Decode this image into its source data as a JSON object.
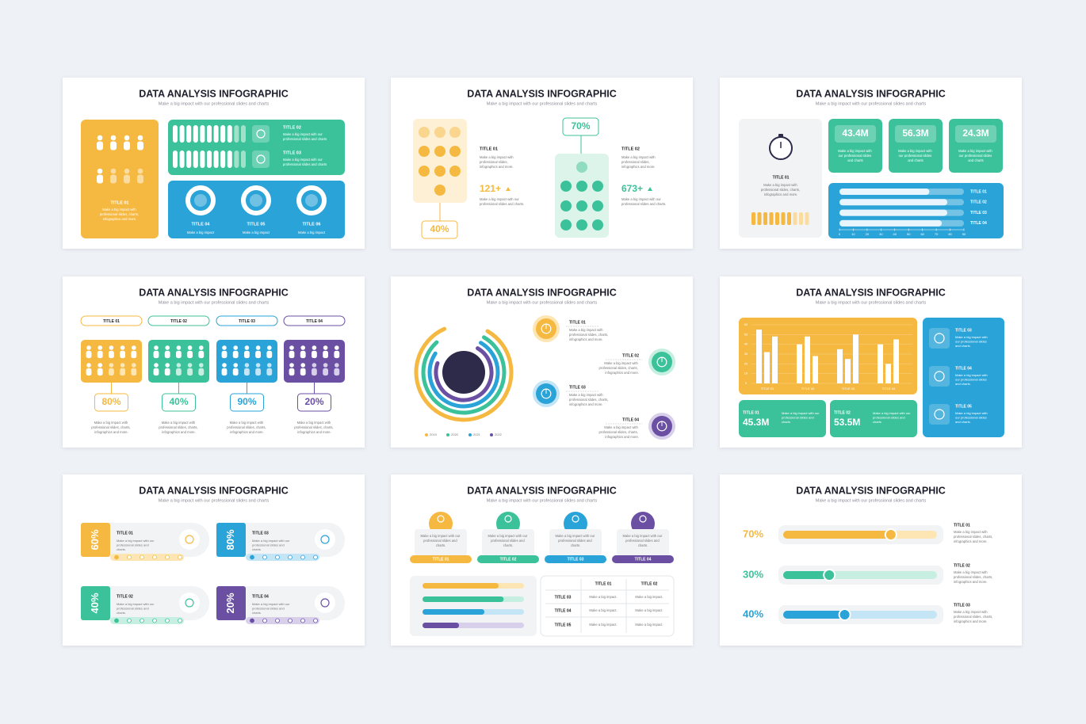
{
  "slides": [
    {
      "title": "DATA ANALYSIS INFOGRAPHIC",
      "subtitle": "Make a big impact with our professional slides and charts",
      "items": [
        {
          "title": "TITLE 01",
          "text": "Make a big impact with professional slides, charts, infographics and more."
        },
        {
          "title": "TITLE 02",
          "text": "Make a big impact with our professional slides and charts"
        },
        {
          "title": "TITLE 03",
          "text": "Make a big impact with our professional slides and charts"
        },
        {
          "title": "TITLE 04",
          "text": "Make a big impact"
        },
        {
          "title": "TITLE 05",
          "text": "Make a big impact"
        },
        {
          "title": "TITLE 06",
          "text": "Make a big impact"
        }
      ]
    },
    {
      "title": "DATA ANALYSIS INFOGRAPHIC",
      "subtitle": "Make a big impact with our professional slides and charts",
      "items": [
        {
          "percent": "40%",
          "title": "TITLE 01",
          "text": "Make a big impact with professional slides, infographics and more.",
          "stat": "121+",
          "stat_text": "Make a big impact with our professional slides and charts."
        },
        {
          "percent": "70%",
          "title": "TITLE 02",
          "text": "Make a big impact with professional slides, infographics and more.",
          "stat": "673+",
          "stat_text": "Make a big impact with our professional slides and charts."
        }
      ]
    },
    {
      "title": "DATA ANALYSIS INFOGRAPHIC",
      "subtitle": "Make a big impact with our professional slides and charts",
      "feature": {
        "title": "TITLE 01",
        "text": "Make a big impact with professional slides, charts, infographics and more."
      },
      "stats": [
        {
          "value": "43.4M",
          "text": "Make a big impact with our professional slides and charts"
        },
        {
          "value": "56.3M",
          "text": "Make a big impact with our professional slides and charts"
        },
        {
          "value": "24.3M",
          "text": "Make a big impact with our professional slides and charts"
        }
      ],
      "bars": {
        "categories": [
          "TITLE 01",
          "TITLE 02",
          "TITLE 03",
          "TITLE 04"
        ],
        "values": [
          65,
          78,
          78,
          74
        ],
        "xlim": [
          0,
          90
        ],
        "xticks": [
          0,
          10,
          20,
          30,
          40,
          50,
          60,
          70,
          80,
          90
        ]
      }
    },
    {
      "title": "DATA ANALYSIS INFOGRAPHIC",
      "subtitle": "Make a big impact with our professional slides and charts",
      "items": [
        {
          "title": "TITLE 01",
          "percent": "80%",
          "text": "Make a big impact with professional slides, charts, infographics and more."
        },
        {
          "title": "TITLE 02",
          "percent": "40%",
          "text": "Make a big impact with professional slides, charts, infographics and more."
        },
        {
          "title": "TITLE 03",
          "percent": "90%",
          "text": "Make a big impact with professional slides, charts, infographics and more."
        },
        {
          "title": "TITLE 04",
          "percent": "20%",
          "text": "Make a big impact with professional slides, charts, infographics and more."
        }
      ]
    },
    {
      "title": "DATA ANALYSIS INFOGRAPHIC",
      "subtitle": "Make a big impact with our professional slides and charts",
      "rings": [
        {
          "name": "2019",
          "color": "#f5b942",
          "value": 85
        },
        {
          "name": "2020",
          "color": "#3cc29a",
          "value": 80
        },
        {
          "name": "2021",
          "color": "#2aa3d8",
          "value": 76
        },
        {
          "name": "2022",
          "color": "#6a4fa3",
          "value": 72
        }
      ],
      "items": [
        {
          "title": "TITLE 01",
          "text": "Make a big impact with professional slides, charts, infographics and more."
        },
        {
          "title": "TITLE 02",
          "text": "Make a big impact with professional slides, charts, infographics and more."
        },
        {
          "title": "TITLE 03",
          "text": "Make a big impact with professional slides, charts, infographics and more."
        },
        {
          "title": "TITLE 04",
          "text": "Make a big impact with professional slides, charts, infographics and more."
        }
      ]
    },
    {
      "title": "DATA ANALYSIS INFOGRAPHIC",
      "subtitle": "Make a big impact with our professional slides and charts",
      "chart": {
        "categories": [
          "TITLE 01",
          "TITLE 02",
          "TITLE 03",
          "TITLE 04"
        ],
        "series": [
          {
            "values": [
              55,
              40,
              35,
              40
            ]
          },
          {
            "values": [
              32,
              48,
              25,
              20
            ]
          },
          {
            "values": [
              48,
              28,
              50,
              45
            ]
          }
        ],
        "ylim": [
          0,
          60
        ],
        "yticks": [
          0,
          10,
          20,
          30,
          40,
          50,
          60
        ]
      },
      "stats": [
        {
          "title": "TITLE 01",
          "value": "45.3M",
          "text": "Make a big impact with our professional slides and charts"
        },
        {
          "title": "TITLE 02",
          "value": "53.5M",
          "text": "Make a big impact with our professional slides and charts"
        }
      ],
      "items": [
        {
          "title": "TITLE 03",
          "text": "Make a big impact with our professional slides and charts."
        },
        {
          "title": "TITLE 04",
          "text": "Make a big impact with our professional slides and charts."
        },
        {
          "title": "TITLE 05",
          "text": "Make a big impact with our professional slides and charts."
        }
      ]
    },
    {
      "title": "DATA ANALYSIS INFOGRAPHIC",
      "subtitle": "Make a big impact with our professional slides and charts",
      "items": [
        {
          "percent": "60%",
          "title": "TITLE 01",
          "text": "Make a big impact with our professional slides and charts"
        },
        {
          "percent": "80%",
          "title": "TITLE 03",
          "text": "Make a big impact with our professional slides and charts"
        },
        {
          "percent": "40%",
          "title": "TITLE 02",
          "text": "Make a big impact with our professional slides and charts"
        },
        {
          "percent": "20%",
          "title": "TITLE 04",
          "text": "Make a big impact with our professional slides and charts"
        }
      ]
    },
    {
      "title": "DATA ANALYSIS INFOGRAPHIC",
      "subtitle": "Make a big impact with our professional slides and charts",
      "cards": [
        {
          "title": "TITLE 01",
          "text": "Make a big impact with our professional slides and charts."
        },
        {
          "title": "TITLE 02",
          "text": "Make a big impact with our professional slides and charts."
        },
        {
          "title": "TITLE 03",
          "text": "Make a big impact with our professional slides and charts."
        },
        {
          "title": "TITLE 04",
          "text": "Make a big impact with our professional slides and charts."
        }
      ],
      "progress": [
        75,
        80,
        61,
        36
      ],
      "table": {
        "columns": [
          "TITLE 01",
          "TITLE 02"
        ],
        "rows": [
          {
            "label": "TITLE 03",
            "cells": [
              "Make a big impact.",
              "Make a big impact."
            ]
          },
          {
            "label": "TITLE 04",
            "cells": [
              "Make a big impact.",
              "Make a big impact."
            ]
          },
          {
            "label": "TITLE 05",
            "cells": [
              "Make a big impact.",
              "Make a big impact."
            ]
          }
        ]
      }
    },
    {
      "title": "DATA ANALYSIS INFOGRAPHIC",
      "subtitle": "Make a big impact with our professional slides and charts",
      "items": [
        {
          "percent": "70%",
          "title": "TITLE 01",
          "text": "Make a big impact with professional slides, charts, infographics and more."
        },
        {
          "percent": "30%",
          "title": "TITLE 02",
          "text": "Make a big impact with professional slides, charts, infographics and more."
        },
        {
          "percent": "40%",
          "title": "TITLE 03",
          "text": "Make a big impact with professional slides, charts, infographics and more."
        }
      ]
    }
  ]
}
